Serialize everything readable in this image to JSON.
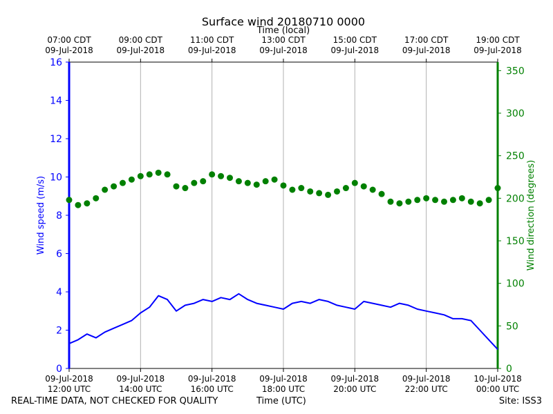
{
  "chart_data": {
    "type": "line+scatter",
    "title": "Surface wind 20180710 0000",
    "top_axis_label": "Time (local)",
    "xlabel": "Time (UTC)",
    "ylabel_left": "Wind speed (m/s)",
    "ylabel_right": "Wind direction (degrees)",
    "footer_left": "REAL-TIME DATA, NOT CHECKED FOR QUALITY",
    "footer_right": "Site: ISS3",
    "x_range_hours_utc": [
      12,
      24
    ],
    "ylim_left": [
      0,
      16
    ],
    "ylim_right": [
      0,
      360
    ],
    "grid": "vertical",
    "colors": {
      "speed": "#0000ff",
      "direction": "#008000",
      "grid": "#b0b0b0"
    },
    "bottom_ticks": [
      {
        "hour": 12,
        "date": "09-Jul-2018",
        "time": "12:00 UTC"
      },
      {
        "hour": 14,
        "date": "09-Jul-2018",
        "time": "14:00 UTC"
      },
      {
        "hour": 16,
        "date": "09-Jul-2018",
        "time": "16:00 UTC"
      },
      {
        "hour": 18,
        "date": "09-Jul-2018",
        "time": "18:00 UTC"
      },
      {
        "hour": 20,
        "date": "09-Jul-2018",
        "time": "20:00 UTC"
      },
      {
        "hour": 22,
        "date": "09-Jul-2018",
        "time": "22:00 UTC"
      },
      {
        "hour": 24,
        "date": "10-Jul-2018",
        "time": "00:00 UTC"
      }
    ],
    "top_ticks": [
      {
        "hour": 12,
        "time": "07:00 CDT",
        "date": "09-Jul-2018"
      },
      {
        "hour": 14,
        "time": "09:00 CDT",
        "date": "09-Jul-2018"
      },
      {
        "hour": 16,
        "time": "11:00 CDT",
        "date": "09-Jul-2018"
      },
      {
        "hour": 18,
        "time": "13:00 CDT",
        "date": "09-Jul-2018"
      },
      {
        "hour": 20,
        "time": "15:00 CDT",
        "date": "09-Jul-2018"
      },
      {
        "hour": 22,
        "time": "17:00 CDT",
        "date": "09-Jul-2018"
      },
      {
        "hour": 24,
        "time": "19:00 CDT",
        "date": "09-Jul-2018"
      }
    ],
    "left_ticks": [
      0,
      2,
      4,
      6,
      8,
      10,
      12,
      14,
      16
    ],
    "right_ticks": [
      0,
      50,
      100,
      150,
      200,
      250,
      300,
      350
    ],
    "series": [
      {
        "name": "Wind speed",
        "axis": "left",
        "style": "line",
        "x_hours": [
          12.0,
          12.25,
          12.5,
          12.75,
          13.0,
          13.25,
          13.5,
          13.75,
          14.0,
          14.25,
          14.5,
          14.75,
          15.0,
          15.25,
          15.5,
          15.75,
          16.0,
          16.25,
          16.5,
          16.75,
          17.0,
          17.25,
          17.5,
          17.75,
          18.0,
          18.25,
          18.5,
          18.75,
          19.0,
          19.25,
          19.5,
          19.75,
          20.0,
          20.25,
          20.5,
          20.75,
          21.0,
          21.25,
          21.5,
          21.75,
          22.0,
          22.25,
          22.5,
          22.75,
          23.0,
          23.25,
          23.5,
          23.75,
          24.0
        ],
        "values": [
          1.3,
          1.5,
          1.8,
          1.6,
          1.9,
          2.1,
          2.3,
          2.5,
          2.9,
          3.2,
          3.8,
          3.6,
          3.0,
          3.3,
          3.4,
          3.6,
          3.5,
          3.7,
          3.6,
          3.9,
          3.6,
          3.4,
          3.3,
          3.2,
          3.1,
          3.4,
          3.5,
          3.4,
          3.6,
          3.5,
          3.3,
          3.2,
          3.1,
          3.5,
          3.4,
          3.3,
          3.2,
          3.4,
          3.3,
          3.1,
          3.0,
          2.9,
          2.8,
          2.6,
          2.6,
          2.5,
          2.0,
          1.5,
          1.0
        ]
      },
      {
        "name": "Wind direction",
        "axis": "right",
        "style": "scatter",
        "x_hours": [
          12.0,
          12.25,
          12.5,
          12.75,
          13.0,
          13.25,
          13.5,
          13.75,
          14.0,
          14.25,
          14.5,
          14.75,
          15.0,
          15.25,
          15.5,
          15.75,
          16.0,
          16.25,
          16.5,
          16.75,
          17.0,
          17.25,
          17.5,
          17.75,
          18.0,
          18.25,
          18.5,
          18.75,
          19.0,
          19.25,
          19.5,
          19.75,
          20.0,
          20.25,
          20.5,
          20.75,
          21.0,
          21.25,
          21.5,
          21.75,
          22.0,
          22.25,
          22.5,
          22.75,
          23.0,
          23.25,
          23.5,
          23.75,
          24.0
        ],
        "values": [
          198,
          192,
          194,
          200,
          210,
          214,
          218,
          222,
          226,
          228,
          230,
          228,
          214,
          212,
          218,
          220,
          228,
          226,
          224,
          220,
          218,
          216,
          220,
          222,
          215,
          210,
          212,
          208,
          206,
          204,
          208,
          212,
          218,
          214,
          210,
          205,
          196,
          194,
          196,
          198,
          200,
          198,
          196,
          198,
          200,
          196,
          194,
          198,
          212
        ]
      }
    ]
  }
}
